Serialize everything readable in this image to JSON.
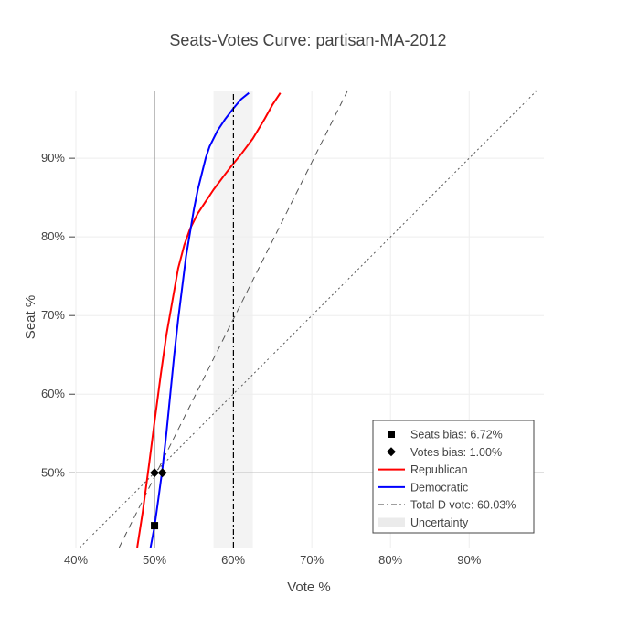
{
  "chart_data": {
    "type": "line",
    "title": "Seats-Votes Curve: partisan-MA-2012",
    "xlabel": "Vote %",
    "ylabel": "Seat %",
    "xlim": [
      0.4,
      0.995
    ],
    "ylim": [
      0.405,
      0.985
    ],
    "x_ticks": [
      0.4,
      0.5,
      0.6,
      0.7,
      0.8,
      0.9
    ],
    "x_tick_labels": [
      "40%",
      "50%",
      "60%",
      "70%",
      "80%",
      "90%"
    ],
    "y_ticks": [
      0.5,
      0.6,
      0.7,
      0.8,
      0.9
    ],
    "y_tick_labels": [
      "50%",
      "60%",
      "70%",
      "80%",
      "90%"
    ],
    "grid": true,
    "legend_position": "bottom-right",
    "colors": {
      "republican": "#ff0000",
      "democratic": "#0000ff",
      "reference": "#555555",
      "uncertainty": "#ebebeb",
      "axis_line": "#888888"
    },
    "series": [
      {
        "name": "Republican",
        "style": "solid",
        "color": "#ff0000",
        "x": [
          0.478,
          0.485,
          0.493,
          0.5,
          0.508,
          0.515,
          0.523,
          0.53,
          0.538,
          0.545,
          0.555,
          0.565,
          0.575,
          0.59,
          0.6,
          0.61,
          0.625,
          0.64,
          0.65,
          0.66
        ],
        "y": [
          0.405,
          0.45,
          0.51,
          0.565,
          0.625,
          0.675,
          0.72,
          0.76,
          0.79,
          0.81,
          0.83,
          0.845,
          0.86,
          0.88,
          0.893,
          0.905,
          0.925,
          0.95,
          0.968,
          0.983
        ]
      },
      {
        "name": "Democratic",
        "style": "solid",
        "color": "#0000ff",
        "x": [
          0.495,
          0.5,
          0.505,
          0.51,
          0.515,
          0.52,
          0.525,
          0.53,
          0.535,
          0.54,
          0.545,
          0.55,
          0.555,
          0.56,
          0.565,
          0.57,
          0.58,
          0.59,
          0.6,
          0.61,
          0.62
        ],
        "y": [
          0.405,
          0.432,
          0.468,
          0.505,
          0.55,
          0.6,
          0.65,
          0.695,
          0.735,
          0.775,
          0.805,
          0.835,
          0.86,
          0.88,
          0.9,
          0.915,
          0.935,
          0.95,
          0.963,
          0.975,
          0.983
        ]
      },
      {
        "name": "Total D vote: 60.03%",
        "style": "dashdot",
        "color": "#000000",
        "x": [
          0.6003,
          0.6003
        ],
        "y": [
          0.405,
          0.985
        ]
      }
    ],
    "reference_lines": [
      {
        "style": "dash",
        "x": [
          0.455,
          0.745
        ],
        "y": [
          0.405,
          0.985
        ]
      },
      {
        "style": "dot",
        "x": [
          0.405,
          0.985
        ],
        "y": [
          0.405,
          0.985
        ]
      }
    ],
    "uncertainty_band": {
      "name": "Uncertainty",
      "x0": 0.575,
      "x1": 0.625
    },
    "markers": [
      {
        "name": "Seats bias: 6.72%",
        "symbol": "square",
        "points": [
          [
            0.5,
            0.4328
          ]
        ]
      },
      {
        "name": "Votes bias: 1.00%",
        "symbol": "diamond",
        "points": [
          [
            0.5,
            0.5
          ],
          [
            0.51,
            0.5
          ]
        ]
      }
    ],
    "crosshair": {
      "x": 0.5,
      "y": 0.5
    },
    "legend": [
      {
        "label": "Seats bias: 6.72%",
        "kind": "square"
      },
      {
        "label": "Votes bias: 1.00%",
        "kind": "diamond"
      },
      {
        "label": "Republican",
        "kind": "line-red"
      },
      {
        "label": "Democratic",
        "kind": "line-blue"
      },
      {
        "label": "Total D vote: 60.03%",
        "kind": "dashdot"
      },
      {
        "label": "Uncertainty",
        "kind": "band"
      }
    ]
  }
}
